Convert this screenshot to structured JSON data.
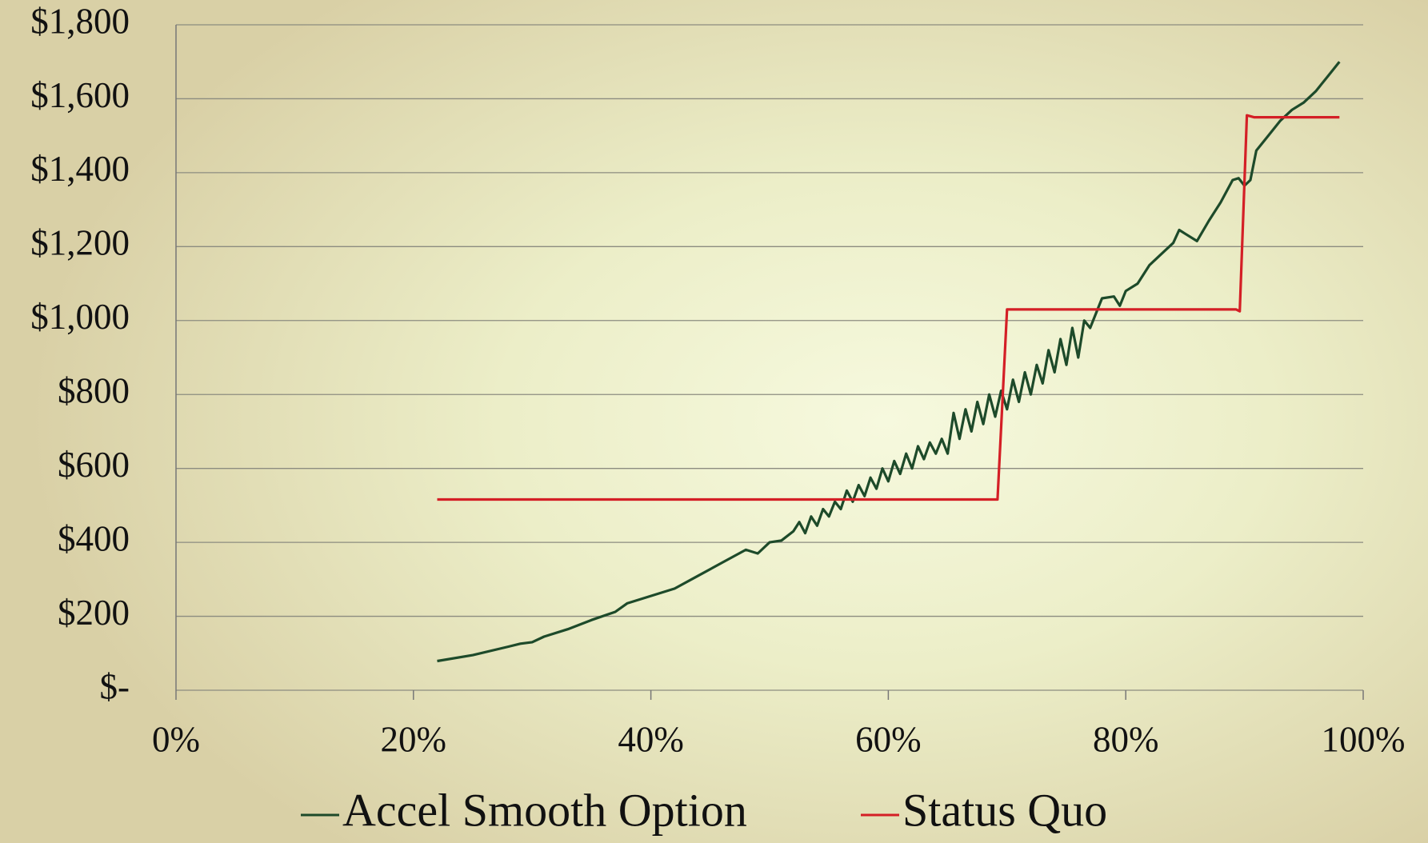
{
  "chart_data": {
    "type": "line",
    "xlim": [
      0,
      100
    ],
    "xticks": [
      {
        "value": 0,
        "label": "0%"
      },
      {
        "value": 20,
        "label": "20%"
      },
      {
        "value": 40,
        "label": "40%"
      },
      {
        "value": 60,
        "label": "60%"
      },
      {
        "value": 80,
        "label": "80%"
      },
      {
        "value": 100,
        "label": "100%"
      }
    ],
    "ylim": [
      0,
      1800
    ],
    "yticks": [
      {
        "value": 0,
        "label": "$-"
      },
      {
        "value": 200,
        "label": "$200"
      },
      {
        "value": 400,
        "label": "$400"
      },
      {
        "value": 600,
        "label": "$600"
      },
      {
        "value": 800,
        "label": "$800"
      },
      {
        "value": 1000,
        "label": "$1,000"
      },
      {
        "value": 1200,
        "label": "$1,200"
      },
      {
        "value": 1400,
        "label": "$1,400"
      },
      {
        "value": 1600,
        "label": "$1,600"
      },
      {
        "value": 1800,
        "label": "$1,800"
      }
    ],
    "grid": true,
    "legend": "bottom",
    "series": [
      {
        "name": "Accel Smooth Option",
        "color": "#1d4a2a",
        "x": [
          22,
          25,
          28,
          29,
          30,
          31,
          33,
          35,
          37,
          38,
          40,
          42,
          44,
          46,
          48,
          49,
          50,
          51,
          52,
          52.5,
          53,
          53.5,
          54,
          54.5,
          55,
          55.5,
          56,
          56.5,
          57,
          57.5,
          58,
          58.5,
          59,
          59.5,
          60,
          60.5,
          61,
          61.5,
          62,
          62.5,
          63,
          63.5,
          64,
          64.5,
          65,
          65.5,
          66,
          66.5,
          67,
          67.5,
          68,
          68.5,
          69,
          69.5,
          70,
          70.5,
          71,
          71.5,
          72,
          72.5,
          73,
          73.5,
          74,
          74.5,
          75,
          75.5,
          76,
          76.5,
          77,
          77.5,
          78,
          79,
          79.5,
          80,
          81,
          82,
          83,
          84,
          84.5,
          85,
          86,
          87,
          88,
          89,
          89.5,
          90,
          90.5,
          91,
          92,
          93,
          94,
          95,
          96,
          97,
          98
        ],
        "values": [
          79,
          95,
          118,
          126,
          130,
          145,
          165,
          190,
          212,
          235,
          255,
          275,
          310,
          345,
          380,
          370,
          400,
          405,
          430,
          455,
          425,
          470,
          445,
          490,
          470,
          510,
          490,
          540,
          510,
          555,
          525,
          575,
          545,
          600,
          565,
          620,
          585,
          640,
          600,
          660,
          625,
          670,
          640,
          680,
          640,
          750,
          680,
          760,
          700,
          780,
          720,
          800,
          740,
          810,
          760,
          840,
          780,
          860,
          800,
          880,
          830,
          920,
          860,
          950,
          880,
          980,
          900,
          1000,
          980,
          1020,
          1060,
          1065,
          1040,
          1080,
          1100,
          1150,
          1180,
          1210,
          1245,
          1235,
          1215,
          1270,
          1320,
          1380,
          1385,
          1365,
          1380,
          1460,
          1500,
          1540,
          1570,
          1590,
          1620,
          1660,
          1700
        ]
      },
      {
        "name": "Status Quo",
        "color": "#d41f26",
        "x": [
          22,
          69.2,
          70,
          89.3,
          89.6,
          90.2,
          90.8,
          98
        ],
        "values": [
          516,
          516,
          1030,
          1030,
          1025,
          1555,
          1550,
          1550
        ]
      }
    ]
  }
}
